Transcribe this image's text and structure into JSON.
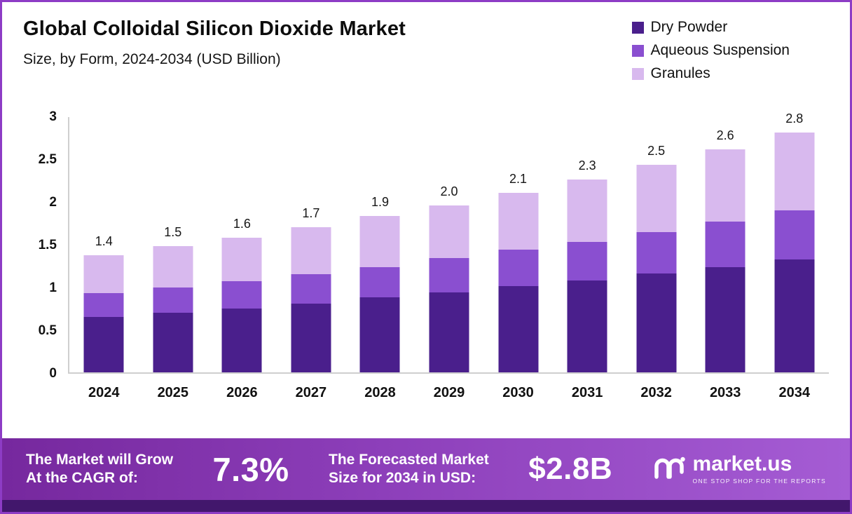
{
  "header": {
    "title": "Global Colloidal Silicon Dioxide Market",
    "subtitle": "Size, by Form, 2024-2034 (USD Billion)"
  },
  "legend": [
    {
      "label": "Dry Powder",
      "color": "#4a1f8c"
    },
    {
      "label": "Aqueous Suspension",
      "color": "#8a4fd0"
    },
    {
      "label": "Granules",
      "color": "#d8b9ee"
    }
  ],
  "chart_data": {
    "type": "bar",
    "stacked": true,
    "title": "Global Colloidal Silicon Dioxide Market Size, by Form, 2024-2034 (USD Billion)",
    "categories": [
      "2024",
      "2025",
      "2026",
      "2027",
      "2028",
      "2029",
      "2030",
      "2031",
      "2032",
      "2033",
      "2034"
    ],
    "series": [
      {
        "name": "Dry Powder",
        "color": "#4a1f8c",
        "values": [
          0.65,
          0.7,
          0.75,
          0.81,
          0.88,
          0.94,
          1.01,
          1.08,
          1.16,
          1.24,
          1.33
        ]
      },
      {
        "name": "Aqueous Suspension",
        "color": "#8a4fd0",
        "values": [
          0.28,
          0.3,
          0.32,
          0.34,
          0.36,
          0.4,
          0.43,
          0.45,
          0.49,
          0.53,
          0.57
        ]
      },
      {
        "name": "Granules",
        "color": "#d8b9ee",
        "values": [
          0.45,
          0.48,
          0.51,
          0.56,
          0.6,
          0.62,
          0.67,
          0.74,
          0.79,
          0.85,
          0.92
        ]
      }
    ],
    "totals_labels": [
      "1.4",
      "1.5",
      "1.6",
      "1.7",
      "1.9",
      "2.0",
      "2.1",
      "2.3",
      "2.5",
      "2.6",
      "2.8"
    ],
    "ymax": 3,
    "yticks": [
      "0",
      "0.5",
      "1",
      "1.5",
      "2",
      "2.5",
      "3"
    ],
    "xlabel": "",
    "ylabel": "",
    "grid": false,
    "legend_position": "top-right"
  },
  "footer": {
    "cagr_label_line1": "The Market will Grow",
    "cagr_label_line2": "At the CAGR of:",
    "cagr_value": "7.3%",
    "forecast_label_line1": "The Forecasted Market",
    "forecast_label_line2": "Size for 2034 in USD:",
    "forecast_value": "$2.8B",
    "brand_name": "market.us",
    "brand_tagline": "ONE STOP SHOP FOR THE REPORTS"
  }
}
